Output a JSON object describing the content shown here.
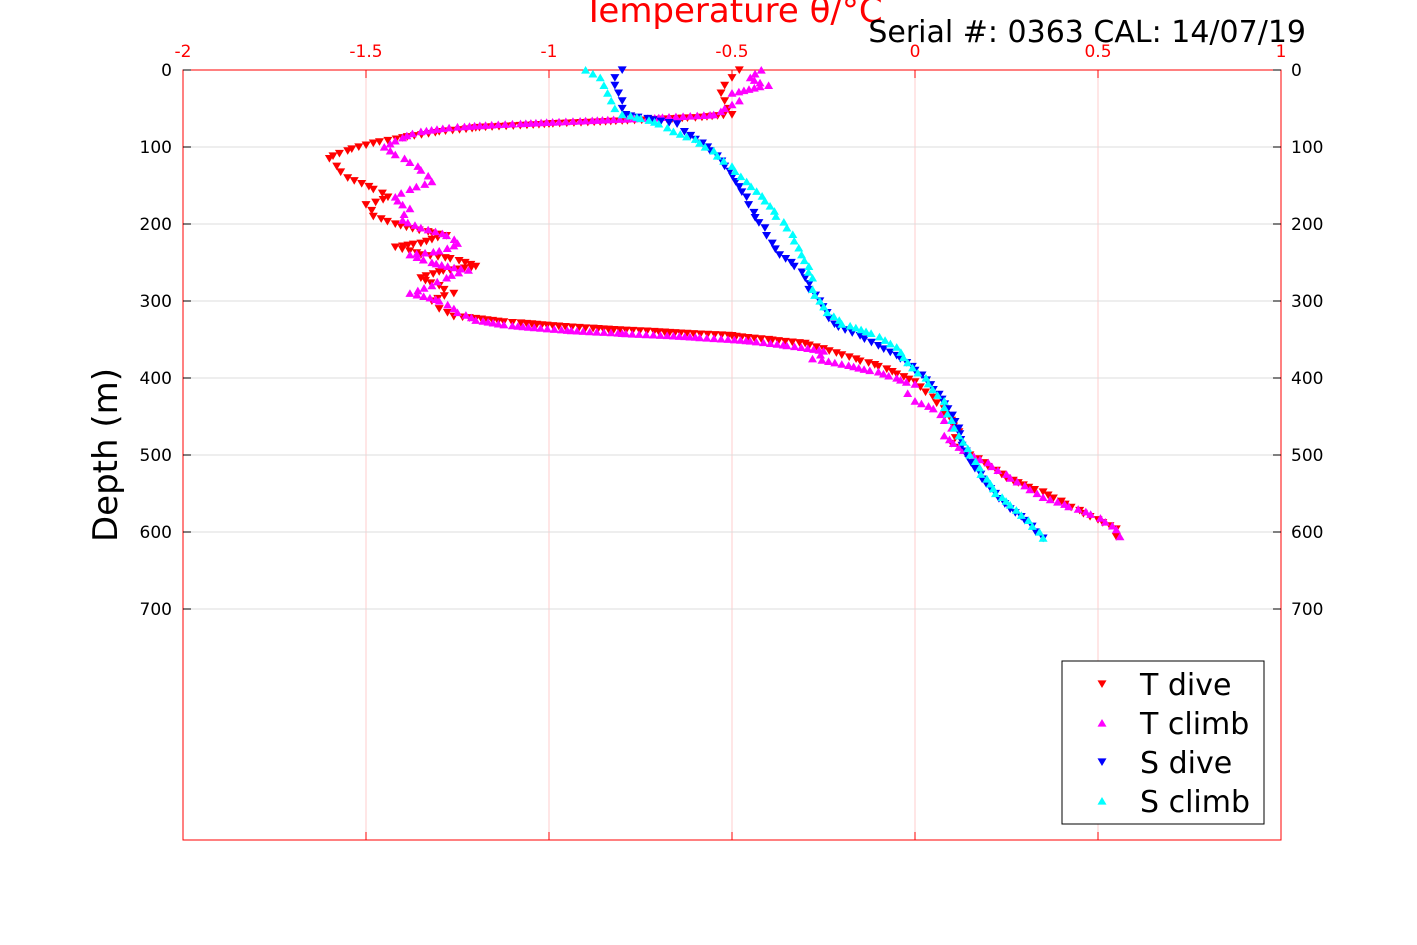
{
  "chart_data": {
    "type": "scatter",
    "title": "Temperature θ/°C",
    "serial_label": "Serial #: 0363  CAL: 14/07/19",
    "xlabel": "Temperature θ/°C",
    "ylabel": "Depth (m)",
    "xlim": [
      -2,
      1
    ],
    "ylim": [
      0,
      1000
    ],
    "y_reversed": true,
    "x_axis_position": "top",
    "x_ticks": [
      -2,
      -1.5,
      -1,
      -0.5,
      0,
      0.5,
      1
    ],
    "x_tick_labels": [
      "-2",
      "-1.5",
      "-1",
      "-0.5",
      "0",
      "0.5",
      "1"
    ],
    "y_ticks": [
      0,
      100,
      200,
      300,
      400,
      500,
      600,
      700
    ],
    "y_tick_labels": [
      "0",
      "100",
      "200",
      "300",
      "400",
      "500",
      "600",
      "700"
    ],
    "grid": true,
    "legend_position": "bottom-right",
    "colors": {
      "axis": "#ff0000",
      "t_dive": "#ff0000",
      "t_climb": "#ff00ff",
      "s_dive": "#0000ff",
      "s_climb": "#00ffff"
    },
    "series": [
      {
        "name": "T dive",
        "marker": "triangle-down",
        "color": "#ff0000",
        "points": [
          [
            -0.48,
            0
          ],
          [
            -0.5,
            10
          ],
          [
            -0.52,
            20
          ],
          [
            -0.53,
            30
          ],
          [
            -0.52,
            40
          ],
          [
            -0.51,
            50
          ],
          [
            -0.5,
            58
          ],
          [
            -0.6,
            62
          ],
          [
            -0.8,
            66
          ],
          [
            -1.0,
            70
          ],
          [
            -1.2,
            75
          ],
          [
            -1.3,
            80
          ],
          [
            -1.4,
            88
          ],
          [
            -1.48,
            95
          ],
          [
            -1.55,
            105
          ],
          [
            -1.6,
            115
          ],
          [
            -1.58,
            125
          ],
          [
            -1.55,
            140
          ],
          [
            -1.48,
            155
          ],
          [
            -1.44,
            165
          ],
          [
            -1.5,
            175
          ],
          [
            -1.48,
            190
          ],
          [
            -1.42,
            200
          ],
          [
            -1.33,
            210
          ],
          [
            -1.28,
            215
          ],
          [
            -1.35,
            225
          ],
          [
            -1.42,
            230
          ],
          [
            -1.35,
            240
          ],
          [
            -1.27,
            245
          ],
          [
            -1.2,
            255
          ],
          [
            -1.3,
            262
          ],
          [
            -1.35,
            270
          ],
          [
            -1.3,
            280
          ],
          [
            -1.26,
            290
          ],
          [
            -1.32,
            300
          ],
          [
            -1.3,
            310
          ],
          [
            -1.26,
            320
          ],
          [
            -1.1,
            328
          ],
          [
            -0.9,
            335
          ],
          [
            -0.7,
            340
          ],
          [
            -0.5,
            345
          ],
          [
            -0.4,
            350
          ],
          [
            -0.3,
            355
          ],
          [
            -0.25,
            362
          ],
          [
            -0.2,
            370
          ],
          [
            -0.15,
            378
          ],
          [
            -0.1,
            385
          ],
          [
            -0.05,
            395
          ],
          [
            0.0,
            405
          ],
          [
            0.05,
            425
          ],
          [
            0.08,
            440
          ],
          [
            0.1,
            455
          ],
          [
            0.12,
            470
          ],
          [
            0.1,
            485
          ],
          [
            0.15,
            500
          ],
          [
            0.2,
            515
          ],
          [
            0.25,
            530
          ],
          [
            0.35,
            548
          ],
          [
            0.4,
            560
          ],
          [
            0.45,
            572
          ],
          [
            0.5,
            584
          ],
          [
            0.55,
            596
          ],
          [
            0.55,
            606
          ]
        ]
      },
      {
        "name": "T climb",
        "marker": "triangle-up",
        "color": "#ff00ff",
        "points": [
          [
            -0.42,
            0
          ],
          [
            -0.45,
            10
          ],
          [
            -0.4,
            20
          ],
          [
            -0.5,
            30
          ],
          [
            -0.48,
            40
          ],
          [
            -0.52,
            50
          ],
          [
            -0.55,
            58
          ],
          [
            -0.7,
            62
          ],
          [
            -0.9,
            66
          ],
          [
            -1.1,
            70
          ],
          [
            -1.25,
            74
          ],
          [
            -1.35,
            80
          ],
          [
            -1.4,
            88
          ],
          [
            -1.45,
            100
          ],
          [
            -1.42,
            110
          ],
          [
            -1.38,
            120
          ],
          [
            -1.35,
            130
          ],
          [
            -1.32,
            145
          ],
          [
            -1.38,
            155
          ],
          [
            -1.42,
            165
          ],
          [
            -1.38,
            180
          ],
          [
            -1.4,
            195
          ],
          [
            -1.35,
            205
          ],
          [
            -1.28,
            215
          ],
          [
            -1.25,
            225
          ],
          [
            -1.3,
            235
          ],
          [
            -1.38,
            240
          ],
          [
            -1.32,
            250
          ],
          [
            -1.22,
            260
          ],
          [
            -1.28,
            270
          ],
          [
            -1.32,
            280
          ],
          [
            -1.38,
            290
          ],
          [
            -1.3,
            300
          ],
          [
            -1.25,
            315
          ],
          [
            -1.2,
            325
          ],
          [
            -1.1,
            332
          ],
          [
            -0.95,
            338
          ],
          [
            -0.8,
            342
          ],
          [
            -0.6,
            347
          ],
          [
            -0.45,
            352
          ],
          [
            -0.35,
            358
          ],
          [
            -0.25,
            365
          ],
          [
            -0.28,
            375
          ],
          [
            -0.2,
            382
          ],
          [
            -0.1,
            392
          ],
          [
            -0.05,
            400
          ],
          [
            0.0,
            408
          ],
          [
            -0.02,
            420
          ],
          [
            0.0,
            430
          ],
          [
            0.05,
            440
          ],
          [
            0.08,
            455
          ],
          [
            0.1,
            465
          ],
          [
            0.08,
            475
          ],
          [
            0.12,
            490
          ],
          [
            0.2,
            510
          ],
          [
            0.25,
            525
          ],
          [
            0.3,
            540
          ],
          [
            0.35,
            555
          ],
          [
            0.42,
            567
          ],
          [
            0.48,
            577
          ],
          [
            0.52,
            587
          ],
          [
            0.55,
            597
          ],
          [
            0.56,
            606
          ]
        ]
      },
      {
        "name": "S dive",
        "marker": "triangle-down",
        "color": "#0000ff",
        "points": [
          [
            -0.8,
            0
          ],
          [
            -0.82,
            10
          ],
          [
            -0.82,
            20
          ],
          [
            -0.81,
            30
          ],
          [
            -0.8,
            40
          ],
          [
            -0.8,
            50
          ],
          [
            -0.79,
            58
          ],
          [
            -0.73,
            63
          ],
          [
            -0.65,
            70
          ],
          [
            -0.63,
            80
          ],
          [
            -0.6,
            90
          ],
          [
            -0.56,
            105
          ],
          [
            -0.52,
            125
          ],
          [
            -0.49,
            145
          ],
          [
            -0.46,
            165
          ],
          [
            -0.44,
            185
          ],
          [
            -0.41,
            205
          ],
          [
            -0.39,
            225
          ],
          [
            -0.37,
            240
          ],
          [
            -0.33,
            255
          ],
          [
            -0.3,
            270
          ],
          [
            -0.29,
            285
          ],
          [
            -0.26,
            300
          ],
          [
            -0.24,
            315
          ],
          [
            -0.22,
            330
          ],
          [
            -0.15,
            345
          ],
          [
            -0.1,
            358
          ],
          [
            -0.04,
            375
          ],
          [
            0.0,
            390
          ],
          [
            0.05,
            415
          ],
          [
            0.09,
            440
          ],
          [
            0.12,
            465
          ],
          [
            0.14,
            495
          ],
          [
            0.18,
            525
          ],
          [
            0.22,
            550
          ],
          [
            0.26,
            570
          ],
          [
            0.3,
            585
          ],
          [
            0.33,
            600
          ],
          [
            0.35,
            608
          ]
        ]
      },
      {
        "name": "S climb",
        "marker": "triangle-up",
        "color": "#00ffff",
        "points": [
          [
            -0.9,
            0
          ],
          [
            -0.86,
            10
          ],
          [
            -0.85,
            20
          ],
          [
            -0.84,
            30
          ],
          [
            -0.83,
            40
          ],
          [
            -0.82,
            50
          ],
          [
            -0.8,
            58
          ],
          [
            -0.75,
            63
          ],
          [
            -0.7,
            70
          ],
          [
            -0.66,
            80
          ],
          [
            -0.6,
            90
          ],
          [
            -0.55,
            105
          ],
          [
            -0.5,
            125
          ],
          [
            -0.46,
            145
          ],
          [
            -0.41,
            170
          ],
          [
            -0.38,
            190
          ],
          [
            -0.35,
            205
          ],
          [
            -0.33,
            222
          ],
          [
            -0.31,
            240
          ],
          [
            -0.29,
            255
          ],
          [
            -0.28,
            270
          ],
          [
            -0.28,
            285
          ],
          [
            -0.26,
            300
          ],
          [
            -0.24,
            315
          ],
          [
            -0.2,
            330
          ],
          [
            -0.12,
            342
          ],
          [
            -0.05,
            360
          ],
          [
            -0.02,
            380
          ],
          [
            0.03,
            400
          ],
          [
            0.08,
            430
          ],
          [
            0.1,
            455
          ],
          [
            0.12,
            475
          ],
          [
            0.15,
            500
          ],
          [
            0.18,
            525
          ],
          [
            0.22,
            550
          ],
          [
            0.26,
            565
          ],
          [
            0.31,
            585
          ],
          [
            0.34,
            600
          ],
          [
            0.35,
            608
          ]
        ]
      }
    ]
  }
}
